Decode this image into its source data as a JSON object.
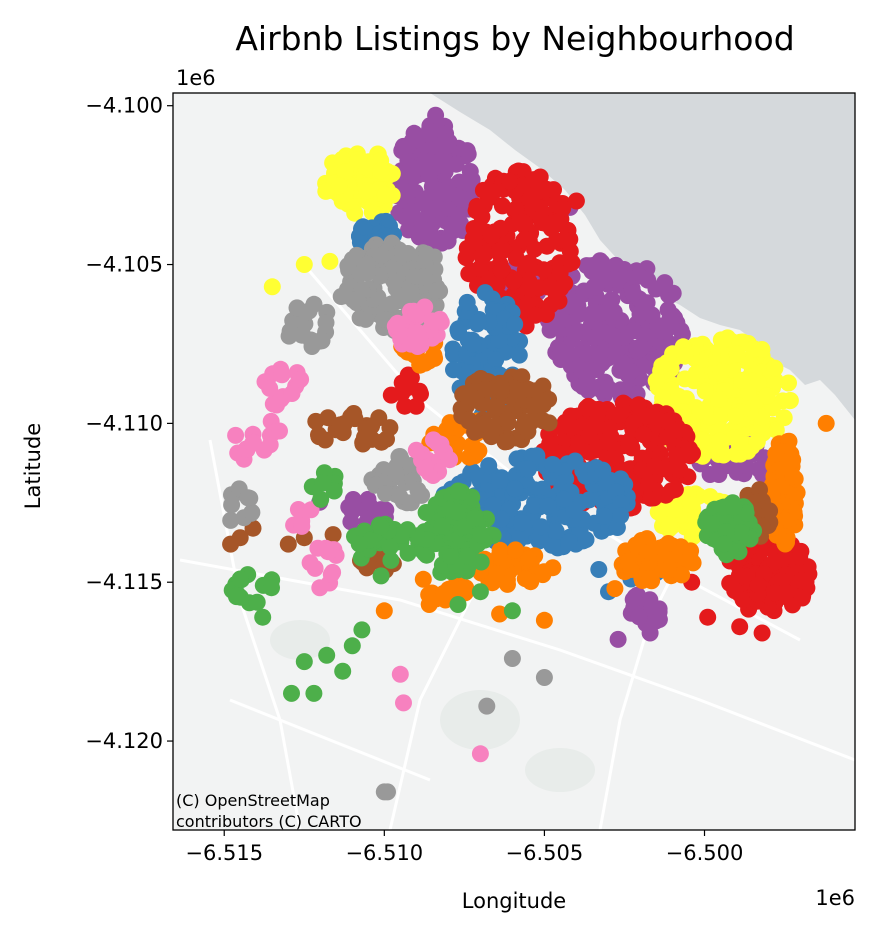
{
  "chart_data": {
    "type": "scatter",
    "title": "Airbnb Listings by Neighbourhood",
    "xlabel": "Longitude",
    "ylabel": "Latitude",
    "x_offset_label": "1e6",
    "y_offset_label": "1e6",
    "xlim": [
      -6.5166,
      -6.4953
    ],
    "ylim": [
      -4.1228,
      -4.0996
    ],
    "xticks": [
      {
        "value": -6.515,
        "label": "−6.515"
      },
      {
        "value": -6.51,
        "label": "−6.510"
      },
      {
        "value": -6.505,
        "label": "−6.505"
      },
      {
        "value": -6.5,
        "label": "−6.500"
      }
    ],
    "yticks": [
      {
        "value": -4.1,
        "label": "−4.100"
      },
      {
        "value": -4.105,
        "label": "−4.105"
      },
      {
        "value": -4.11,
        "label": "−4.110"
      },
      {
        "value": -4.115,
        "label": "−4.115"
      },
      {
        "value": -4.12,
        "label": "−4.120"
      }
    ],
    "attribution": [
      "(C) OpenStreetMap",
      "contributors (C) CARTO"
    ],
    "basemap": {
      "land": "#f2f3f3",
      "water": "#d5d9dc",
      "roads": "#ffffff"
    },
    "series": [
      {
        "color": "#984ea3",
        "clusters": [
          {
            "cx": -6.5084,
            "cy": -4.1025,
            "rx": 0.0013,
            "ry": 0.002,
            "n": 150
          },
          {
            "cx": -6.5027,
            "cy": -4.107,
            "rx": 0.0022,
            "ry": 0.0022,
            "n": 230
          },
          {
            "cx": -6.5058,
            "cy": -4.1058,
            "rx": 0.0006,
            "ry": 0.0008,
            "n": 30
          },
          {
            "cx": -6.499,
            "cy": -4.1112,
            "rx": 0.0012,
            "ry": 0.0006,
            "n": 40
          },
          {
            "cx": -6.5018,
            "cy": -4.1158,
            "rx": 0.0006,
            "ry": 0.0006,
            "n": 18
          },
          {
            "cx": -6.511,
            "cy": -4.1128,
            "rx": 0.0012,
            "ry": 0.0007,
            "n": 16
          }
        ],
        "points": [
          [
            -6.5027,
            -4.1168
          ],
          [
            -6.5017,
            -4.1166
          ],
          [
            -6.5042,
            -4.1032
          ],
          [
            -6.5084,
            -4.1003
          ]
        ]
      },
      {
        "color": "#ffff33",
        "clusters": [
          {
            "cx": -6.5107,
            "cy": -4.1025,
            "rx": 0.0012,
            "ry": 0.0011,
            "n": 80
          },
          {
            "cx": -6.4995,
            "cy": -4.1092,
            "rx": 0.0022,
            "ry": 0.0019,
            "n": 220
          },
          {
            "cx": -6.5003,
            "cy": -4.1129,
            "rx": 0.0012,
            "ry": 0.0007,
            "n": 60
          }
        ],
        "points": [
          [
            -6.5117,
            -4.1049
          ],
          [
            -6.5125,
            -4.105
          ],
          [
            -6.5135,
            -4.1057
          ]
        ]
      },
      {
        "color": "#e41a1c",
        "clusters": [
          {
            "cx": -6.5058,
            "cy": -4.1045,
            "rx": 0.0017,
            "ry": 0.0025,
            "n": 180
          },
          {
            "cx": -6.5027,
            "cy": -4.111,
            "rx": 0.0024,
            "ry": 0.0017,
            "n": 230
          },
          {
            "cx": -6.498,
            "cy": -4.1148,
            "rx": 0.0013,
            "ry": 0.0013,
            "n": 120
          },
          {
            "cx": -6.5095,
            "cy": -4.109,
            "rx": 0.0008,
            "ry": 0.0006,
            "n": 10
          }
        ],
        "points": [
          [
            -6.504,
            -4.103
          ],
          [
            -6.4989,
            -4.1164
          ],
          [
            -6.4982,
            -4.1166
          ],
          [
            -6.4999,
            -4.1161
          ],
          [
            -6.5004,
            -4.115
          ]
        ]
      },
      {
        "color": "#377eb8",
        "clusters": [
          {
            "cx": -6.5102,
            "cy": -4.1042,
            "rx": 0.0007,
            "ry": 0.0006,
            "n": 25
          },
          {
            "cx": -6.5068,
            "cy": -4.1078,
            "rx": 0.0011,
            "ry": 0.002,
            "n": 110
          },
          {
            "cx": -6.5052,
            "cy": -4.1125,
            "rx": 0.003,
            "ry": 0.0015,
            "n": 220
          }
        ],
        "points": [
          [
            -6.5033,
            -4.1146
          ],
          [
            -6.5023,
            -4.1149
          ],
          [
            -6.5015,
            -4.1147
          ],
          [
            -6.503,
            -4.1153
          ]
        ]
      },
      {
        "color": "#ff7f00",
        "clusters": [
          {
            "cx": -6.5088,
            "cy": -4.1077,
            "rx": 0.0007,
            "ry": 0.0005,
            "n": 20
          },
          {
            "cx": -6.5076,
            "cy": -4.1105,
            "rx": 0.001,
            "ry": 0.0007,
            "n": 25
          },
          {
            "cx": -6.4975,
            "cy": -4.1122,
            "rx": 0.0004,
            "ry": 0.0018,
            "n": 70
          },
          {
            "cx": -6.506,
            "cy": -4.1145,
            "rx": 0.0013,
            "ry": 0.0006,
            "n": 45
          },
          {
            "cx": -6.5015,
            "cy": -4.1143,
            "rx": 0.0012,
            "ry": 0.0007,
            "n": 50
          },
          {
            "cx": -6.5082,
            "cy": -4.1152,
            "rx": 0.001,
            "ry": 0.0004,
            "n": 15
          }
        ],
        "points": [
          [
            -6.4962,
            -4.11
          ],
          [
            -6.51,
            -4.1159
          ],
          [
            -6.5086,
            -4.1157
          ],
          [
            -6.5078,
            -4.1153
          ],
          [
            -6.5064,
            -4.116
          ],
          [
            -6.505,
            -4.1162
          ],
          [
            -6.5028,
            -4.1152
          ]
        ]
      },
      {
        "color": "#a65628",
        "clusters": [
          {
            "cx": -6.5062,
            "cy": -4.1095,
            "rx": 0.0015,
            "ry": 0.0011,
            "n": 80
          },
          {
            "cx": -6.4984,
            "cy": -4.1128,
            "rx": 0.0005,
            "ry": 0.0008,
            "n": 25
          },
          {
            "cx": -6.511,
            "cy": -4.1102,
            "rx": 0.0013,
            "ry": 0.0006,
            "n": 25
          },
          {
            "cx": -6.5103,
            "cy": -4.1143,
            "rx": 0.0007,
            "ry": 0.0005,
            "n": 14
          }
        ],
        "points": [
          [
            -6.5145,
            -4.1136
          ],
          [
            -6.5148,
            -4.1138
          ],
          [
            -6.5141,
            -4.1133
          ],
          [
            -6.5116,
            -4.1135
          ],
          [
            -6.5125,
            -4.1136
          ],
          [
            -6.513,
            -4.1138
          ]
        ]
      },
      {
        "color": "#999999",
        "clusters": [
          {
            "cx": -6.5097,
            "cy": -4.1057,
            "rx": 0.0017,
            "ry": 0.0014,
            "n": 120
          },
          {
            "cx": -6.5124,
            "cy": -4.1068,
            "rx": 0.0007,
            "ry": 0.0008,
            "n": 20
          },
          {
            "cx": -6.5095,
            "cy": -4.1118,
            "rx": 0.0009,
            "ry": 0.0008,
            "n": 30
          },
          {
            "cx": -6.5145,
            "cy": -4.1127,
            "rx": 0.0004,
            "ry": 0.0007,
            "n": 10
          }
        ],
        "points": [
          [
            -6.5068,
            -4.1189
          ],
          [
            -6.506,
            -4.1174
          ],
          [
            -6.505,
            -4.118
          ],
          [
            -6.51,
            -4.1216
          ],
          [
            -6.5099,
            -4.1216
          ]
        ]
      },
      {
        "color": "#f781bf",
        "clusters": [
          {
            "cx": -6.5089,
            "cy": -4.107,
            "rx": 0.0008,
            "ry": 0.0007,
            "n": 30
          },
          {
            "cx": -6.5085,
            "cy": -4.1111,
            "rx": 0.0006,
            "ry": 0.0006,
            "n": 18
          },
          {
            "cx": -6.5131,
            "cy": -4.1088,
            "rx": 0.0007,
            "ry": 0.0008,
            "n": 14
          },
          {
            "cx": -6.514,
            "cy": -4.1105,
            "rx": 0.0008,
            "ry": 0.0008,
            "n": 14
          },
          {
            "cx": -6.5119,
            "cy": -4.1145,
            "rx": 0.0005,
            "ry": 0.0007,
            "n": 12
          },
          {
            "cx": -6.5125,
            "cy": -4.113,
            "rx": 0.0004,
            "ry": 0.0004,
            "n": 6
          }
        ],
        "points": [
          [
            -6.5095,
            -4.1179
          ],
          [
            -6.5094,
            -4.1188
          ],
          [
            -6.507,
            -4.1204
          ]
        ]
      },
      {
        "color": "#4daf4a",
        "clusters": [
          {
            "cx": -6.5078,
            "cy": -4.1135,
            "rx": 0.0012,
            "ry": 0.0014,
            "n": 90
          },
          {
            "cx": -6.51,
            "cy": -4.1138,
            "rx": 0.001,
            "ry": 0.0007,
            "n": 25
          },
          {
            "cx": -6.514,
            "cy": -4.1152,
            "rx": 0.0008,
            "ry": 0.0005,
            "n": 14
          },
          {
            "cx": -6.4992,
            "cy": -4.1133,
            "rx": 0.0008,
            "ry": 0.0009,
            "n": 60
          },
          {
            "cx": -6.5118,
            "cy": -4.112,
            "rx": 0.0005,
            "ry": 0.0005,
            "n": 8
          }
        ],
        "points": [
          [
            -6.5107,
            -4.1165
          ],
          [
            -6.511,
            -4.117
          ],
          [
            -6.5113,
            -4.1178
          ],
          [
            -6.5118,
            -4.1173
          ],
          [
            -6.5125,
            -4.1175
          ],
          [
            -6.5122,
            -4.1185
          ],
          [
            -6.5129,
            -4.1185
          ],
          [
            -6.5138,
            -4.1161
          ],
          [
            -6.5145,
            -4.1149
          ],
          [
            -6.5077,
            -4.1157
          ],
          [
            -6.507,
            -4.1153
          ],
          [
            -6.506,
            -4.1159
          ],
          [
            -6.5101,
            -4.1148
          ]
        ]
      }
    ]
  }
}
